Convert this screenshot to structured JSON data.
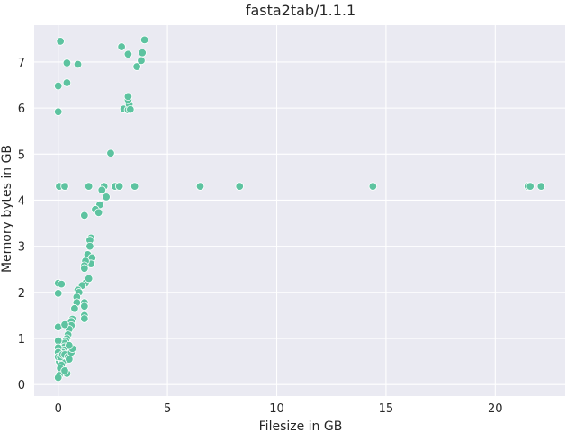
{
  "chart_data": {
    "type": "scatter",
    "title": "fasta2tab/1.1.1",
    "xlabel": "Filesize in GB",
    "ylabel": "Memory bytes in GB",
    "xlim": [
      -1.1,
      23.2
    ],
    "ylim": [
      -0.25,
      7.8
    ],
    "xticks": [
      0,
      5,
      10,
      15,
      20
    ],
    "yticks": [
      0,
      1,
      2,
      3,
      4,
      5,
      6,
      7
    ],
    "grid": true,
    "colors": {
      "background": "#eaeaf2",
      "grid": "#ffffff",
      "point": "#5dc3a0",
      "text": "#262626"
    },
    "series": [
      {
        "points": [
          [
            0.1,
            7.45
          ],
          [
            0.4,
            6.98
          ],
          [
            0.9,
            6.95
          ],
          [
            0.0,
            6.48
          ],
          [
            0.4,
            6.55
          ],
          [
            0.0,
            5.92
          ],
          [
            2.9,
            7.33
          ],
          [
            3.2,
            7.17
          ],
          [
            3.6,
            6.9
          ],
          [
            3.8,
            7.03
          ],
          [
            3.85,
            7.2
          ],
          [
            3.95,
            7.48
          ],
          [
            3.0,
            5.98
          ],
          [
            3.2,
            5.96
          ],
          [
            3.25,
            6.08
          ],
          [
            3.2,
            6.18
          ],
          [
            3.2,
            6.25
          ],
          [
            3.3,
            5.97
          ],
          [
            2.4,
            5.02
          ],
          [
            0.05,
            4.3
          ],
          [
            0.3,
            4.3
          ],
          [
            1.4,
            4.3
          ],
          [
            2.1,
            4.3
          ],
          [
            2.6,
            4.3
          ],
          [
            2.8,
            4.3
          ],
          [
            3.5,
            4.3
          ],
          [
            6.5,
            4.3
          ],
          [
            8.3,
            4.3
          ],
          [
            14.4,
            4.3
          ],
          [
            21.5,
            4.3
          ],
          [
            21.6,
            4.3
          ],
          [
            22.1,
            4.3
          ],
          [
            2.0,
            4.22
          ],
          [
            2.2,
            4.07
          ],
          [
            1.9,
            3.9
          ],
          [
            1.7,
            3.8
          ],
          [
            1.85,
            3.73
          ],
          [
            1.2,
            3.67
          ],
          [
            1.5,
            3.18
          ],
          [
            1.45,
            3.13
          ],
          [
            1.45,
            3.0
          ],
          [
            1.35,
            2.82
          ],
          [
            1.55,
            2.75
          ],
          [
            1.5,
            2.62
          ],
          [
            1.25,
            2.68
          ],
          [
            1.2,
            2.58
          ],
          [
            1.2,
            2.52
          ],
          [
            1.25,
            2.2
          ],
          [
            1.4,
            2.3
          ],
          [
            1.1,
            2.15
          ],
          [
            0.9,
            2.05
          ],
          [
            0.95,
            2.0
          ],
          [
            0.85,
            1.9
          ],
          [
            0.85,
            1.78
          ],
          [
            0.75,
            1.65
          ],
          [
            1.2,
            1.78
          ],
          [
            1.2,
            1.7
          ],
          [
            1.2,
            1.5
          ],
          [
            1.2,
            1.43
          ],
          [
            0.65,
            1.42
          ],
          [
            0.6,
            1.37
          ],
          [
            0.6,
            1.28
          ],
          [
            0.5,
            1.2
          ],
          [
            0.45,
            1.08
          ],
          [
            0.4,
            1.0
          ],
          [
            0.35,
            0.95
          ],
          [
            0.3,
            0.9
          ],
          [
            0.3,
            0.82
          ],
          [
            0.25,
            0.75
          ],
          [
            0.2,
            0.7
          ],
          [
            0.15,
            0.6
          ],
          [
            0.1,
            0.55
          ],
          [
            0.05,
            0.5
          ],
          [
            0.2,
            0.48
          ],
          [
            0.15,
            0.42
          ],
          [
            0.1,
            0.35
          ],
          [
            0.05,
            0.2
          ],
          [
            0.0,
            0.15
          ],
          [
            0.4,
            0.24
          ],
          [
            0.3,
            0.3
          ],
          [
            0.0,
            2.2
          ],
          [
            0.15,
            2.18
          ],
          [
            0.0,
            1.98
          ],
          [
            0.0,
            1.25
          ],
          [
            0.3,
            1.3
          ],
          [
            0.0,
            0.95
          ],
          [
            0.0,
            0.8
          ],
          [
            0.0,
            0.7
          ],
          [
            0.0,
            0.6
          ],
          [
            0.1,
            0.6
          ],
          [
            0.2,
            0.65
          ],
          [
            0.3,
            0.65
          ],
          [
            0.45,
            0.6
          ],
          [
            0.5,
            0.55
          ],
          [
            0.6,
            0.7
          ],
          [
            0.65,
            0.78
          ],
          [
            0.5,
            0.85
          ]
        ]
      }
    ]
  }
}
